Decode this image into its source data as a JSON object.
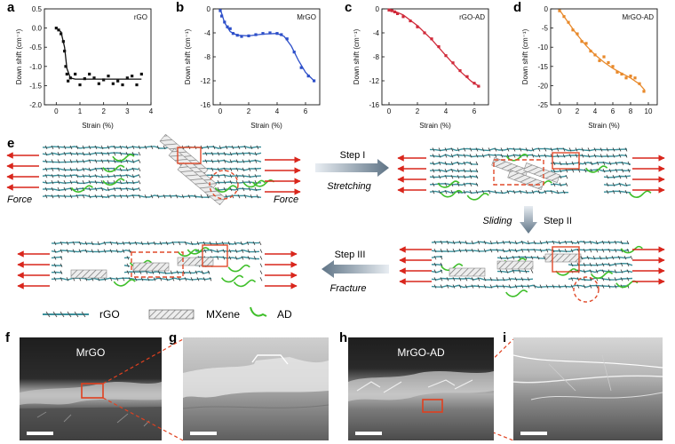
{
  "panel_letters": {
    "a": "a",
    "b": "b",
    "c": "c",
    "d": "d",
    "e": "e",
    "f": "f",
    "g": "g",
    "h": "h",
    "i": "i"
  },
  "chart_data": [
    {
      "id": "a",
      "type": "scatter",
      "title": "rGO",
      "xlabel": "Strain (%)",
      "ylabel": "Down shift (cm⁻¹)",
      "xlim": [
        -0.5,
        4
      ],
      "ylim": [
        -2.0,
        0.5
      ],
      "xticks": [
        0,
        1,
        2,
        3,
        4
      ],
      "yticks": [
        0.5,
        0.0,
        -0.5,
        -1.0,
        -1.5,
        -2.0
      ],
      "ytick_labels": [
        "0.5",
        "0.0",
        "-0.5",
        "-1.0",
        "-1.5",
        "-2.0"
      ],
      "color": "#111111",
      "points": [
        [
          0,
          0
        ],
        [
          0.1,
          -0.05
        ],
        [
          0.2,
          -0.15
        ],
        [
          0.3,
          -0.35
        ],
        [
          0.35,
          -0.6
        ],
        [
          0.4,
          -1.0
        ],
        [
          0.45,
          -1.2
        ],
        [
          0.5,
          -1.38
        ],
        [
          0.6,
          -1.3
        ],
        [
          0.8,
          -1.2
        ],
        [
          1.0,
          -1.48
        ],
        [
          1.2,
          -1.32
        ],
        [
          1.4,
          -1.2
        ],
        [
          1.6,
          -1.3
        ],
        [
          1.8,
          -1.45
        ],
        [
          2.0,
          -1.35
        ],
        [
          2.2,
          -1.25
        ],
        [
          2.4,
          -1.45
        ],
        [
          2.6,
          -1.38
        ],
        [
          2.8,
          -1.48
        ],
        [
          3.0,
          -1.3
        ],
        [
          3.2,
          -1.25
        ],
        [
          3.4,
          -1.48
        ],
        [
          3.6,
          -1.2
        ]
      ],
      "fit": [
        [
          0,
          0
        ],
        [
          0.2,
          -0.1
        ],
        [
          0.35,
          -0.5
        ],
        [
          0.45,
          -1.05
        ],
        [
          0.6,
          -1.3
        ],
        [
          0.8,
          -1.33
        ],
        [
          1.5,
          -1.33
        ],
        [
          2.5,
          -1.33
        ],
        [
          3.6,
          -1.33
        ]
      ]
    },
    {
      "id": "b",
      "type": "scatter",
      "title": "MrGO",
      "xlabel": "Strain (%)",
      "ylabel": "Down shift (cm⁻¹)",
      "xlim": [
        -0.5,
        7
      ],
      "ylim": [
        -16,
        0
      ],
      "xticks": [
        0,
        2,
        4,
        6
      ],
      "yticks": [
        0,
        -4,
        -8,
        -12,
        -16
      ],
      "ytick_labels": [
        "0",
        "-4",
        "-8",
        "-12",
        "-16"
      ],
      "color": "#2d4fc9",
      "points": [
        [
          0,
          -0.3
        ],
        [
          0.1,
          -1.2
        ],
        [
          0.3,
          -2.2
        ],
        [
          0.5,
          -3.0
        ],
        [
          0.7,
          -3.3
        ],
        [
          0.9,
          -4.1
        ],
        [
          1.2,
          -4.4
        ],
        [
          1.5,
          -4.6
        ],
        [
          2.0,
          -4.5
        ],
        [
          2.5,
          -4.3
        ],
        [
          3.0,
          -4.1
        ],
        [
          3.5,
          -4.0
        ],
        [
          4.0,
          -4.1
        ],
        [
          4.3,
          -4.3
        ],
        [
          4.7,
          -5.0
        ],
        [
          5.2,
          -7.2
        ],
        [
          5.7,
          -9.8
        ],
        [
          6.2,
          -11.2
        ],
        [
          6.6,
          -12.0
        ]
      ],
      "fit": [
        [
          0,
          0
        ],
        [
          0.3,
          -2.3
        ],
        [
          0.7,
          -3.8
        ],
        [
          1.2,
          -4.4
        ],
        [
          2,
          -4.5
        ],
        [
          3,
          -4.2
        ],
        [
          4,
          -4.1
        ],
        [
          4.5,
          -4.6
        ],
        [
          5,
          -6.2
        ],
        [
          5.5,
          -8.6
        ],
        [
          6,
          -10.6
        ],
        [
          6.6,
          -12.0
        ]
      ]
    },
    {
      "id": "c",
      "type": "scatter",
      "title": "rGO-AD",
      "xlabel": "Strain (%)",
      "ylabel": "Down shift (cm⁻¹)",
      "xlim": [
        -0.5,
        7
      ],
      "ylim": [
        -16,
        0
      ],
      "xticks": [
        0,
        2,
        4,
        6
      ],
      "yticks": [
        0,
        -4,
        -8,
        -12,
        -16
      ],
      "ytick_labels": [
        "0",
        "-4",
        "-8",
        "-12",
        "-16"
      ],
      "color": "#d02a3a",
      "points": [
        [
          0,
          -0.2
        ],
        [
          0.2,
          -0.3
        ],
        [
          0.4,
          -0.5
        ],
        [
          0.6,
          -0.8
        ],
        [
          1.0,
          -1.3
        ],
        [
          1.5,
          -2.0
        ],
        [
          2.0,
          -3.0
        ],
        [
          2.5,
          -4.0
        ],
        [
          3.0,
          -5.0
        ],
        [
          3.5,
          -6.3
        ],
        [
          4.0,
          -7.8
        ],
        [
          4.5,
          -9.0
        ],
        [
          5.0,
          -10.3
        ],
        [
          5.5,
          -11.3
        ],
        [
          6.0,
          -12.4
        ],
        [
          6.3,
          -12.9
        ]
      ],
      "fit": [
        [
          0,
          0
        ],
        [
          1,
          -1.0
        ],
        [
          2,
          -2.8
        ],
        [
          3,
          -5.1
        ],
        [
          4,
          -7.8
        ],
        [
          5,
          -10.4
        ],
        [
          5.8,
          -12.1
        ],
        [
          6.4,
          -13.0
        ]
      ]
    },
    {
      "id": "d",
      "type": "scatter",
      "title": "MrGO-AD",
      "xlabel": "Strain (%)",
      "ylabel": "Down shift (cm⁻¹)",
      "xlim": [
        -1,
        11
      ],
      "ylim": [
        -25,
        0
      ],
      "xticks": [
        0,
        2,
        4,
        6,
        8,
        10
      ],
      "yticks": [
        0,
        -5,
        -10,
        -15,
        -20,
        -25
      ],
      "ytick_labels": [
        "0",
        "-5",
        "-10",
        "-15",
        "-20",
        "-25"
      ],
      "color": "#e8892a",
      "points": [
        [
          0,
          -0.5
        ],
        [
          0.5,
          -2.0
        ],
        [
          1.0,
          -3.5
        ],
        [
          1.5,
          -5.5
        ],
        [
          2.0,
          -6.5
        ],
        [
          2.5,
          -8.5
        ],
        [
          3.0,
          -9.0
        ],
        [
          3.5,
          -11.0
        ],
        [
          4.0,
          -12.0
        ],
        [
          4.5,
          -13.5
        ],
        [
          5.0,
          -12.5
        ],
        [
          5.5,
          -14.0
        ],
        [
          6.0,
          -15.0
        ],
        [
          6.5,
          -16.5
        ],
        [
          7.0,
          -17.0
        ],
        [
          7.5,
          -18.0
        ],
        [
          8.0,
          -17.5
        ],
        [
          8.5,
          -18.0
        ],
        [
          9.0,
          -19.5
        ],
        [
          9.5,
          -21.5
        ]
      ],
      "fit": [
        [
          0,
          -0.3
        ],
        [
          1,
          -3.6
        ],
        [
          2,
          -6.8
        ],
        [
          3,
          -9.6
        ],
        [
          4,
          -12.0
        ],
        [
          5,
          -13.9
        ],
        [
          6,
          -15.5
        ],
        [
          7,
          -16.8
        ],
        [
          8,
          -18.0
        ],
        [
          9,
          -19.6
        ],
        [
          9.6,
          -21.2
        ]
      ]
    }
  ],
  "schematic": {
    "force_left": "Force",
    "force_right": "Force",
    "step1": "Step I",
    "step1_sub": "Stretching",
    "step2": "Step II",
    "step2_sub": "Sliding",
    "step3": "Step III",
    "step3_sub": "Fracture",
    "legend": {
      "rgo": "rGO",
      "mxene": "MXene",
      "ad": "AD"
    },
    "colors": {
      "arrow": "#d9261c",
      "box": "#e04a2a",
      "ad": "#3fbf2a",
      "rgo": "#3a8f9a",
      "mxene": "#999999",
      "step_arrow": "#667a8c"
    }
  },
  "sem": {
    "f_label": "MrGO",
    "h_label": "MrGO-AD"
  }
}
